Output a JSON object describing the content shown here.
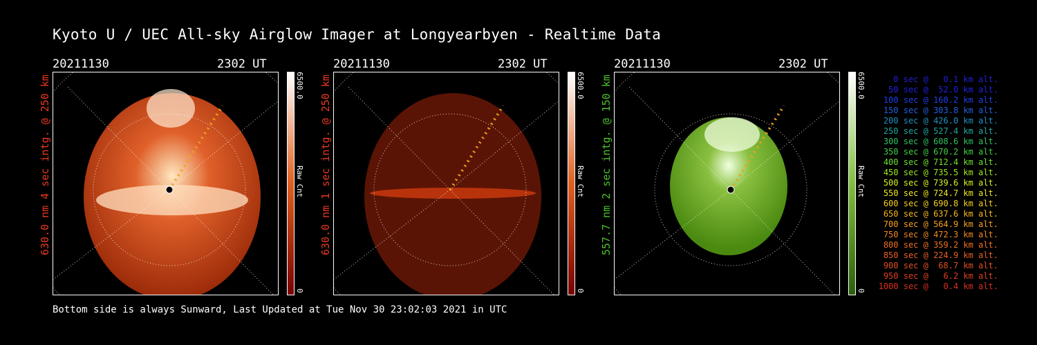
{
  "title": "Kyoto U / UEC All-sky Airglow Imager at Longyearbyen - Realtime Data",
  "footer": "Bottom side is always Sunward, Last Updated at Tue Nov 30 23:02:03 2021 in UTC",
  "panels": [
    {
      "date": "20211130",
      "time": "2302 UT",
      "label": "630.0 nm 4 sec intg. @ 250 km",
      "label_color": "#e8391f",
      "colorbar": {
        "max": "6500.0",
        "min": "0",
        "unit": "Raw Cnt",
        "top_color": "#ffffff",
        "bottom_color": "#7a0000"
      },
      "image_color": "#c13a10"
    },
    {
      "date": "20211130",
      "time": "2302 UT",
      "label": "630.0 nm 1 sec intg. @ 250 km",
      "label_color": "#e8391f",
      "colorbar": {
        "max": "6500.0",
        "min": "0",
        "unit": "Raw Cnt",
        "top_color": "#ffffff",
        "bottom_color": "#7a0000"
      },
      "image_color": "#5a1405"
    },
    {
      "date": "20211130",
      "time": "2302 UT",
      "label": "557.7 nm 2 sec intg. @ 150 km",
      "label_color": "#4cc22a",
      "colorbar": {
        "max": "6500.0",
        "min": "0",
        "unit": "Raw Cnt",
        "top_color": "#ffffff",
        "bottom_color": "#2a5f0a"
      },
      "image_color": "#4f8f14"
    }
  ],
  "legend": [
    {
      "text": "0 sec @   0.1 km alt.",
      "color": "#2020d0"
    },
    {
      "text": "50 sec @  52.0 km alt.",
      "color": "#2020e0"
    },
    {
      "text": "100 sec @ 160.2 km alt.",
      "color": "#2040e8"
    },
    {
      "text": "150 sec @ 303.8 km alt.",
      "color": "#2060e0"
    },
    {
      "text": "200 sec @ 426.0 km alt.",
      "color": "#2090c0"
    },
    {
      "text": "250 sec @ 527.4 km alt.",
      "color": "#20a8a0"
    },
    {
      "text": "300 sec @ 608.6 km alt.",
      "color": "#30c060"
    },
    {
      "text": "350 sec @ 670.2 km alt.",
      "color": "#40d040"
    },
    {
      "text": "400 sec @ 712.4 km alt.",
      "color": "#70e030"
    },
    {
      "text": "450 sec @ 735.5 km alt.",
      "color": "#a0e820"
    },
    {
      "text": "500 sec @ 739.6 km alt.",
      "color": "#d8f020"
    },
    {
      "text": "550 sec @ 724.7 km alt.",
      "color": "#f0e820"
    },
    {
      "text": "600 sec @ 690.8 km alt.",
      "color": "#f8d020"
    },
    {
      "text": "650 sec @ 637.6 km alt.",
      "color": "#f8b820"
    },
    {
      "text": "700 sec @ 564.9 km alt.",
      "color": "#f8a020"
    },
    {
      "text": "750 sec @ 472.3 km alt.",
      "color": "#f08820"
    },
    {
      "text": "800 sec @ 359.2 km alt.",
      "color": "#f07020"
    },
    {
      "text": "850 sec @ 224.9 km alt.",
      "color": "#e86020"
    },
    {
      "text": "900 sec @  68.7 km alt.",
      "color": "#e05020"
    },
    {
      "text": "950 sec @   6.2 km alt.",
      "color": "#e04020"
    },
    {
      "text": "1000 sec @   0.4 km alt.",
      "color": "#d83020"
    }
  ]
}
